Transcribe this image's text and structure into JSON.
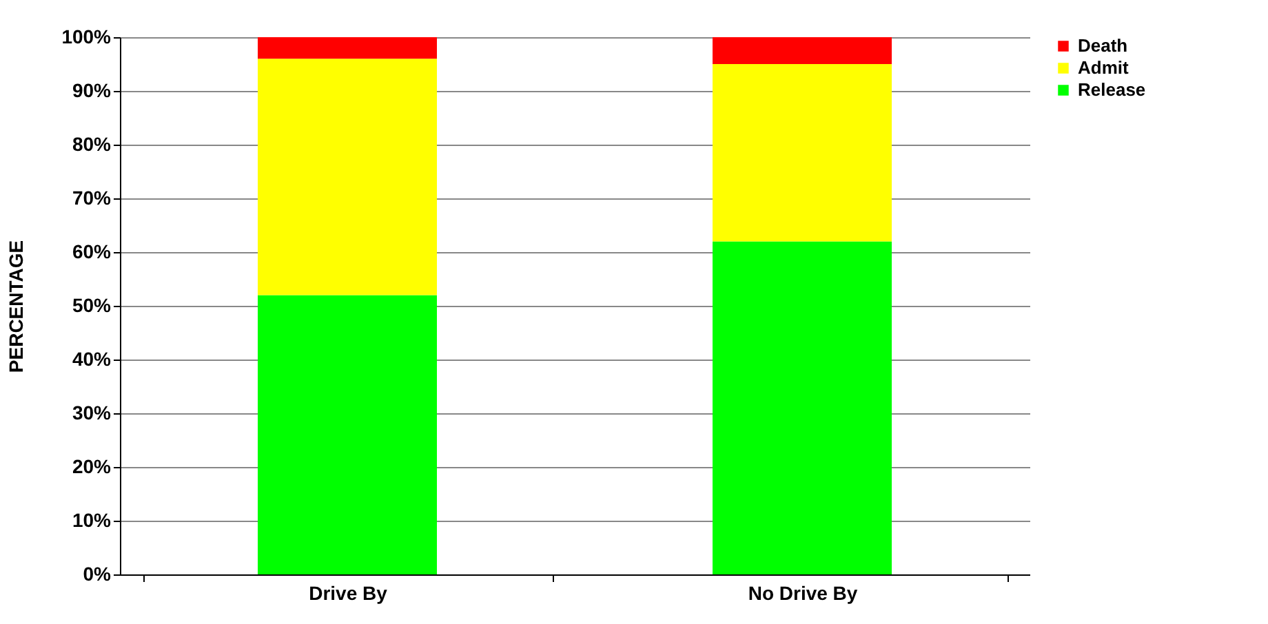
{
  "chart_data": {
    "type": "bar",
    "stacked": true,
    "ylabel": "PERCENTAGE",
    "categories": [
      "Drive By",
      "No Drive By"
    ],
    "series": [
      {
        "name": "Release",
        "color": "#00ff00",
        "values": [
          52,
          62
        ]
      },
      {
        "name": "Admit",
        "color": "#ffff00",
        "values": [
          44,
          33
        ]
      },
      {
        "name": "Death",
        "color": "#ff0000",
        "values": [
          4,
          5
        ]
      }
    ],
    "ylim": [
      0,
      100
    ],
    "yticks": [
      {
        "value": 0,
        "label": "0%"
      },
      {
        "value": 10,
        "label": "10%"
      },
      {
        "value": 20,
        "label": "20%"
      },
      {
        "value": 30,
        "label": "30%"
      },
      {
        "value": 40,
        "label": "40%"
      },
      {
        "value": 50,
        "label": "50%"
      },
      {
        "value": 60,
        "label": "60%"
      },
      {
        "value": 70,
        "label": "70%"
      },
      {
        "value": 80,
        "label": "80%"
      },
      {
        "value": 90,
        "label": "90%"
      },
      {
        "value": 100,
        "label": "100%"
      }
    ],
    "grid": "y",
    "legend": "right"
  }
}
